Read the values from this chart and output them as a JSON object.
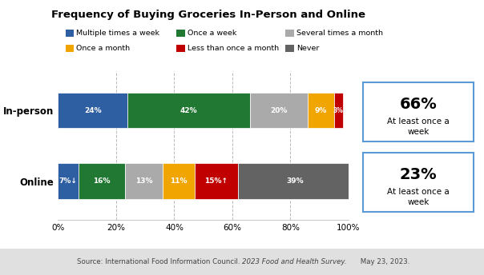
{
  "title": "Frequency of Buying Groceries In-Person and Online",
  "categories": [
    "In-person",
    "Online"
  ],
  "segments": [
    {
      "label": "Multiple times a week",
      "color": "#2E5FA3",
      "values": [
        24,
        7
      ]
    },
    {
      "label": "Once a week",
      "color": "#217832",
      "values": [
        42,
        16
      ]
    },
    {
      "label": "Several times a month",
      "color": "#AAAAAA",
      "values": [
        20,
        13
      ]
    },
    {
      "label": "Once a month",
      "color": "#F0A500",
      "values": [
        9,
        11
      ]
    },
    {
      "label": "Less than once a month",
      "color": "#C00000",
      "values": [
        3,
        15
      ]
    },
    {
      "label": "Never",
      "color": "#636363",
      "values": [
        0,
        39
      ]
    }
  ],
  "bar_labels": [
    [
      "24%",
      "42%",
      "20%",
      "9%",
      "3%",
      ""
    ],
    [
      "7%↓",
      "16%",
      "13%",
      "11%",
      "15%↑",
      "39%"
    ]
  ],
  "callout_pct": [
    "66%",
    "23%"
  ],
  "callout_text": [
    "At least once a\nweek",
    "At least once a\nweek"
  ],
  "source_plain": "Source: International Food Information Council. ",
  "source_italic": "2023 Food and Health Survey.",
  "source_plain2": " May 23, 2023.",
  "bg_color": "#FFFFFF",
  "footer_bg": "#E0E0E0",
  "legend_row1": [
    "Multiple times a week",
    "Once a week",
    "Several times a month"
  ],
  "legend_row2": [
    "Once a month",
    "Less than once a month",
    "Never"
  ],
  "legend_colors_row1": [
    "#2E5FA3",
    "#217832",
    "#AAAAAA"
  ],
  "legend_colors_row2": [
    "#F0A500",
    "#C00000",
    "#636363"
  ]
}
